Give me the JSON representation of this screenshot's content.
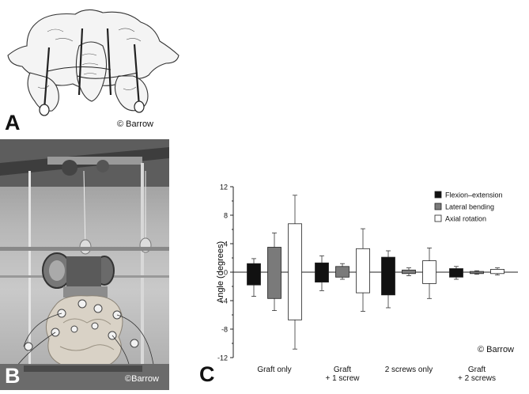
{
  "panels": {
    "a": {
      "letter": "A",
      "credit": "© Barrow"
    },
    "b": {
      "letter": "B",
      "credit": "©Barrow"
    },
    "c": {
      "letter": "C",
      "credit": "© Barrow"
    }
  },
  "colors": {
    "flexion_extension": "#111111",
    "lateral_bending": "#7a7a7a",
    "axial_rotation": "#ffffff"
  },
  "chart_data": {
    "type": "bar",
    "ylabel": "Angle (degrees)",
    "ylim": [
      -12,
      12
    ],
    "yticks": [
      "12",
      "8",
      "4",
      "0",
      "-4",
      "-8",
      "-12"
    ],
    "ytick_values": [
      12,
      8,
      4,
      0,
      -4,
      -8,
      -12
    ],
    "categories": [
      "Graft only",
      "Graft\n+ 1 screw",
      "2 screws only",
      "Graft\n+ 2 screws"
    ],
    "legend_position": "top-right",
    "series": [
      {
        "name": "Flexion–extension",
        "color": "#111111",
        "ranges": [
          [
            -1.8,
            1.2
          ],
          [
            -1.4,
            1.3
          ],
          [
            -3.2,
            2.1
          ],
          [
            -0.7,
            0.5
          ]
        ],
        "error_ranges": [
          [
            -3.4,
            1.9
          ],
          [
            -2.6,
            2.3
          ],
          [
            -5.0,
            3.0
          ],
          [
            -1.0,
            0.8
          ]
        ]
      },
      {
        "name": "Lateral bending",
        "color": "#7a7a7a",
        "ranges": [
          [
            -3.7,
            3.5
          ],
          [
            -0.7,
            0.8
          ],
          [
            -0.2,
            0.3
          ],
          [
            -0.2,
            0.1
          ]
        ],
        "error_ranges": [
          [
            -5.4,
            5.5
          ],
          [
            -1.0,
            1.2
          ],
          [
            -0.5,
            0.6
          ],
          [
            -0.3,
            0.2
          ]
        ]
      },
      {
        "name": "Axial rotation",
        "color": "#ffffff",
        "ranges": [
          [
            -6.7,
            6.8
          ],
          [
            -2.9,
            3.3
          ],
          [
            -1.6,
            1.6
          ],
          [
            -0.2,
            0.4
          ]
        ],
        "error_ranges": [
          [
            -10.8,
            10.8
          ],
          [
            -5.5,
            6.1
          ],
          [
            -3.7,
            3.4
          ],
          [
            -0.4,
            0.6
          ]
        ]
      }
    ]
  }
}
